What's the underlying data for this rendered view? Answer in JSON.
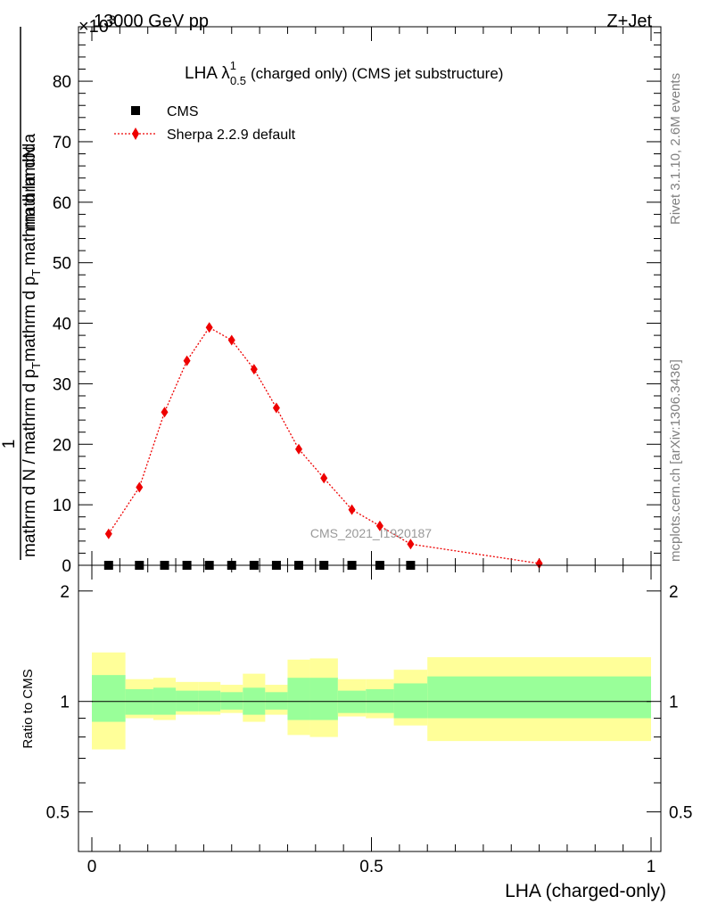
{
  "header": {
    "energy": "13000 GeV pp",
    "process": "Z+Jet",
    "exponent": "×10",
    "exponent_power": "3"
  },
  "plot_title": {
    "main": "LHA λ",
    "superscript": "1",
    "subscript": "0.5",
    "suffix": "(charged only) (CMS jet substructure)"
  },
  "side_labels": {
    "rivet": "Rivet 3.1.10,  2.6M events",
    "mcplots": "mcplots.cern.ch [arXiv:1306.3436]"
  },
  "watermark": "CMS_2021_I1920187",
  "ylabel_main": {
    "numerator": "mathrm dN",
    "one": "1",
    "denominator_left": "mathrm d p",
    "denominator_right": "mathrm d lambda",
    "subscript_T": "T",
    "full_bottom": "mathrm d N / mathrm d p",
    "full_bottom_tail": "mathrm d p",
    "full_bottom_end": "mathrm d lambda"
  },
  "ylabel_ratio": "Ratio to CMS",
  "xlabel": "LHA (charged-only)",
  "legend": [
    {
      "name": "CMS",
      "marker": "square",
      "color": "#000000"
    },
    {
      "name": "Sherpa 2.2.9 default",
      "marker": "diamond",
      "color": "#ee0000"
    }
  ],
  "colors": {
    "mc": "#ee0000",
    "data": "#000000",
    "band_inner": "#99ff99",
    "band_outer": "#ffff99",
    "side_text": "#808080"
  },
  "chart_data": [
    {
      "type": "line",
      "panel": "main",
      "xlim": [
        0,
        1
      ],
      "ylim": [
        0,
        89
      ],
      "y_unit_multiplier": 1000,
      "x_ticks": [
        0,
        0.5,
        1
      ],
      "y_ticks": [
        0,
        10,
        20,
        30,
        40,
        50,
        60,
        70,
        80
      ],
      "series": [
        {
          "name": "Sherpa 2.2.9 default",
          "x": [
            0.03,
            0.085,
            0.13,
            0.17,
            0.21,
            0.25,
            0.29,
            0.33,
            0.37,
            0.415,
            0.465,
            0.515,
            0.57,
            0.8
          ],
          "y": [
            5.2,
            12.9,
            25.3,
            33.8,
            39.3,
            37.2,
            32.4,
            26.0,
            19.2,
            14.4,
            9.2,
            6.5,
            3.5,
            0.3
          ]
        },
        {
          "name": "CMS",
          "x": [
            0.03,
            0.085,
            0.13,
            0.17,
            0.21,
            0.25,
            0.29,
            0.33,
            0.37,
            0.415,
            0.465,
            0.515,
            0.57
          ],
          "y": [
            0,
            0,
            0,
            0,
            0,
            0,
            0,
            0,
            0,
            0,
            0,
            0,
            0
          ]
        }
      ]
    },
    {
      "type": "area",
      "panel": "ratio",
      "xlim": [
        0,
        1
      ],
      "ylim": [
        0.39,
        2.35
      ],
      "y_ticks": [
        0.5,
        1,
        2
      ],
      "y_tick_labels": [
        "0.5",
        "1",
        "2"
      ],
      "x_tick_labels": [
        "0",
        "0.5",
        "1"
      ],
      "bins": [
        {
          "lo": 0.0,
          "hi": 0.06,
          "inner": [
            0.88,
            1.18
          ],
          "outer": [
            0.74,
            1.36
          ]
        },
        {
          "lo": 0.06,
          "hi": 0.11,
          "inner": [
            0.92,
            1.08
          ],
          "outer": [
            0.9,
            1.15
          ]
        },
        {
          "lo": 0.11,
          "hi": 0.15,
          "inner": [
            0.92,
            1.09
          ],
          "outer": [
            0.89,
            1.16
          ]
        },
        {
          "lo": 0.15,
          "hi": 0.19,
          "inner": [
            0.94,
            1.07
          ],
          "outer": [
            0.92,
            1.13
          ]
        },
        {
          "lo": 0.19,
          "hi": 0.23,
          "inner": [
            0.94,
            1.07
          ],
          "outer": [
            0.92,
            1.13
          ]
        },
        {
          "lo": 0.23,
          "hi": 0.27,
          "inner": [
            0.95,
            1.06
          ],
          "outer": [
            0.93,
            1.11
          ]
        },
        {
          "lo": 0.27,
          "hi": 0.31,
          "inner": [
            0.92,
            1.09
          ],
          "outer": [
            0.88,
            1.19
          ]
        },
        {
          "lo": 0.31,
          "hi": 0.35,
          "inner": [
            0.95,
            1.06
          ],
          "outer": [
            0.92,
            1.11
          ]
        },
        {
          "lo": 0.35,
          "hi": 0.39,
          "inner": [
            0.89,
            1.16
          ],
          "outer": [
            0.81,
            1.3
          ]
        },
        {
          "lo": 0.39,
          "hi": 0.44,
          "inner": [
            0.89,
            1.16
          ],
          "outer": [
            0.8,
            1.31
          ]
        },
        {
          "lo": 0.44,
          "hi": 0.49,
          "inner": [
            0.93,
            1.07
          ],
          "outer": [
            0.91,
            1.15
          ]
        },
        {
          "lo": 0.49,
          "hi": 0.54,
          "inner": [
            0.93,
            1.08
          ],
          "outer": [
            0.9,
            1.15
          ]
        },
        {
          "lo": 0.54,
          "hi": 0.6,
          "inner": [
            0.9,
            1.12
          ],
          "outer": [
            0.86,
            1.22
          ]
        },
        {
          "lo": 0.6,
          "hi": 1.0,
          "inner": [
            0.9,
            1.17
          ],
          "outer": [
            0.78,
            1.32
          ]
        }
      ],
      "reference_line": 1
    }
  ]
}
